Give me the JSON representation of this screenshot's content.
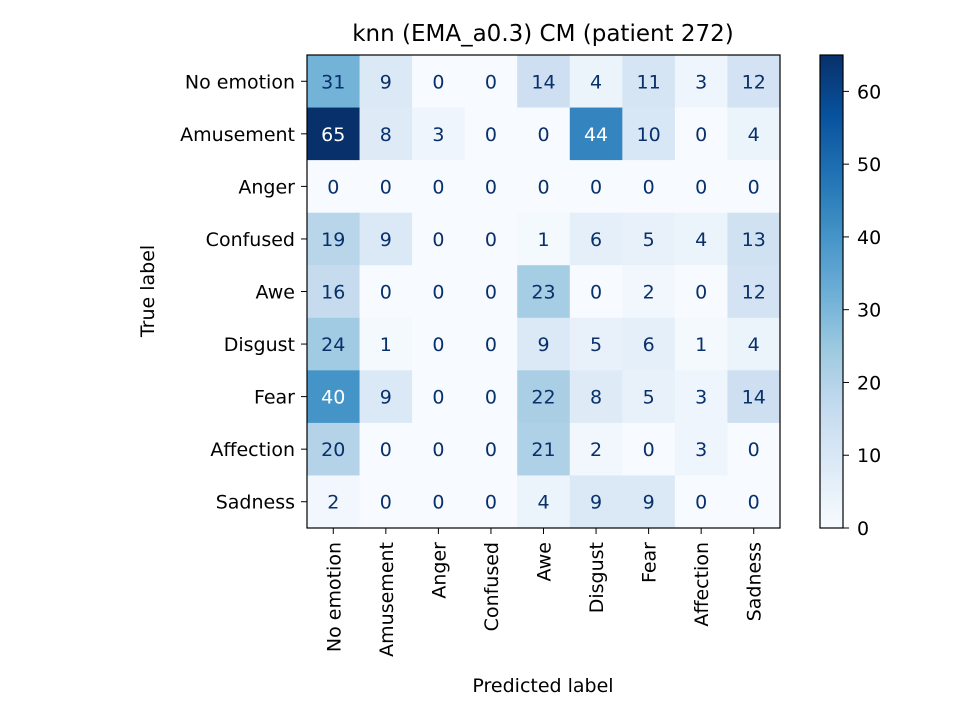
{
  "chart_data": {
    "type": "heatmap",
    "title": "knn (EMA_a0.3) CM (patient 272)",
    "xlabel": "Predicted label",
    "ylabel": "True label",
    "x_categories": [
      "No emotion",
      "Amusement",
      "Anger",
      "Confused",
      "Awe",
      "Disgust",
      "Fear",
      "Affection",
      "Sadness"
    ],
    "y_categories": [
      "No emotion",
      "Amusement",
      "Anger",
      "Confused",
      "Awe",
      "Disgust",
      "Fear",
      "Affection",
      "Sadness"
    ],
    "values": [
      [
        31,
        9,
        0,
        0,
        14,
        4,
        11,
        3,
        12
      ],
      [
        65,
        8,
        3,
        0,
        0,
        44,
        10,
        0,
        4
      ],
      [
        0,
        0,
        0,
        0,
        0,
        0,
        0,
        0,
        0
      ],
      [
        19,
        9,
        0,
        0,
        1,
        6,
        5,
        4,
        13
      ],
      [
        16,
        0,
        0,
        0,
        23,
        0,
        2,
        0,
        12
      ],
      [
        24,
        1,
        0,
        0,
        9,
        5,
        6,
        1,
        4
      ],
      [
        40,
        9,
        0,
        0,
        22,
        8,
        5,
        3,
        14
      ],
      [
        20,
        0,
        0,
        0,
        21,
        2,
        0,
        3,
        0
      ],
      [
        2,
        0,
        0,
        0,
        4,
        9,
        9,
        0,
        0
      ]
    ],
    "colormap": "Blues",
    "colorbar": {
      "min": 0,
      "max": 65,
      "ticks": [
        0,
        10,
        20,
        30,
        40,
        50,
        60
      ]
    },
    "grid": false
  }
}
